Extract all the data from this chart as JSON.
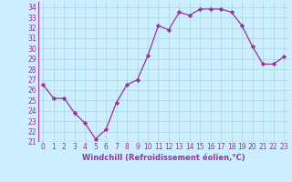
{
  "x": [
    0,
    1,
    2,
    3,
    4,
    5,
    6,
    7,
    8,
    9,
    10,
    11,
    12,
    13,
    14,
    15,
    16,
    17,
    18,
    19,
    20,
    21,
    22,
    23
  ],
  "y": [
    26.5,
    25.2,
    25.2,
    23.8,
    22.8,
    21.3,
    22.2,
    24.8,
    26.5,
    27.0,
    29.3,
    32.2,
    31.8,
    33.5,
    33.2,
    33.8,
    33.8,
    33.8,
    33.5,
    32.2,
    30.2,
    28.5,
    28.5,
    29.2
  ],
  "line_color": "#993399",
  "marker": "D",
  "marker_size": 2.2,
  "bg_color": "#cceeff",
  "grid_color": "#aadddd",
  "xlabel": "Windchill (Refroidissement éolien,°C)",
  "xlabel_color": "#993399",
  "tick_color": "#993399",
  "ylim": [
    21,
    34.5
  ],
  "yticks": [
    21,
    22,
    23,
    24,
    25,
    26,
    27,
    28,
    29,
    30,
    31,
    32,
    33,
    34
  ],
  "xlim": [
    -0.5,
    23.5
  ],
  "xticks": [
    0,
    1,
    2,
    3,
    4,
    5,
    6,
    7,
    8,
    9,
    10,
    11,
    12,
    13,
    14,
    15,
    16,
    17,
    18,
    19,
    20,
    21,
    22,
    23
  ],
  "tick_fontsize": 5.5,
  "xlabel_fontsize": 6.0
}
